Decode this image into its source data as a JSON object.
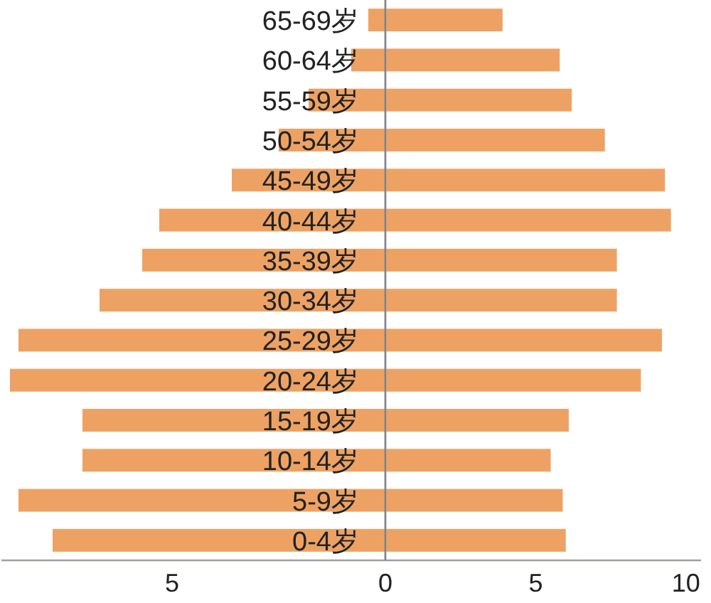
{
  "chart_data": [
    {
      "type": "bar",
      "orientation": "horizontal",
      "categories": [
        "65-69岁",
        "60-64岁",
        "55-59岁",
        "50-54岁",
        "45-49岁",
        "40-44岁",
        "35-39岁",
        "30-34岁",
        "25-29岁",
        "20-24岁",
        "15-19岁",
        "10-14岁",
        "5-9岁",
        "0-4岁"
      ],
      "values": [
        0.4,
        0.8,
        1.8,
        2.5,
        3.6,
        5.3,
        5.7,
        6.7,
        8.6,
        8.8,
        7.1,
        7.1,
        8.6,
        7.8
      ],
      "color": "#eda264",
      "xlim": [
        9,
        0
      ],
      "xticks": [
        5,
        0
      ]
    },
    {
      "type": "bar",
      "orientation": "horizontal",
      "categories": [
        null,
        null,
        null,
        null,
        null,
        null,
        null,
        null,
        null,
        null,
        null,
        null,
        null,
        null
      ],
      "values": [
        3.9,
        5.8,
        6.2,
        7.3,
        9.3,
        9.5,
        7.7,
        7.7,
        9.2,
        8.5,
        6.1,
        5.5,
        5.9,
        6.0
      ],
      "color": "#eda264",
      "xlim": [
        0,
        10.5
      ],
      "xticks": [
        5,
        10
      ]
    }
  ]
}
